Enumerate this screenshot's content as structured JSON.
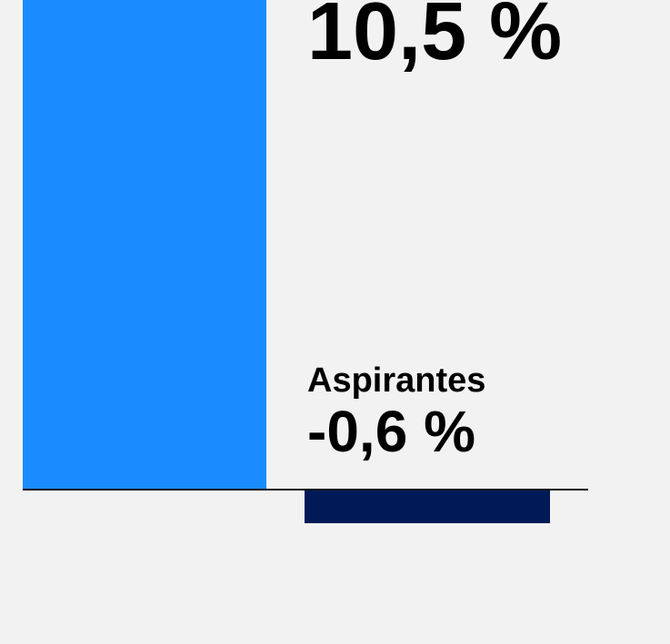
{
  "chart_data": {
    "type": "bar",
    "categories": [
      null,
      "Aspirantes"
    ],
    "values": [
      10.5,
      -0.6
    ],
    "value_labels": [
      "10,5 %",
      "-0,6 %"
    ],
    "colors": [
      "#1a8cff",
      "#001a57"
    ]
  }
}
